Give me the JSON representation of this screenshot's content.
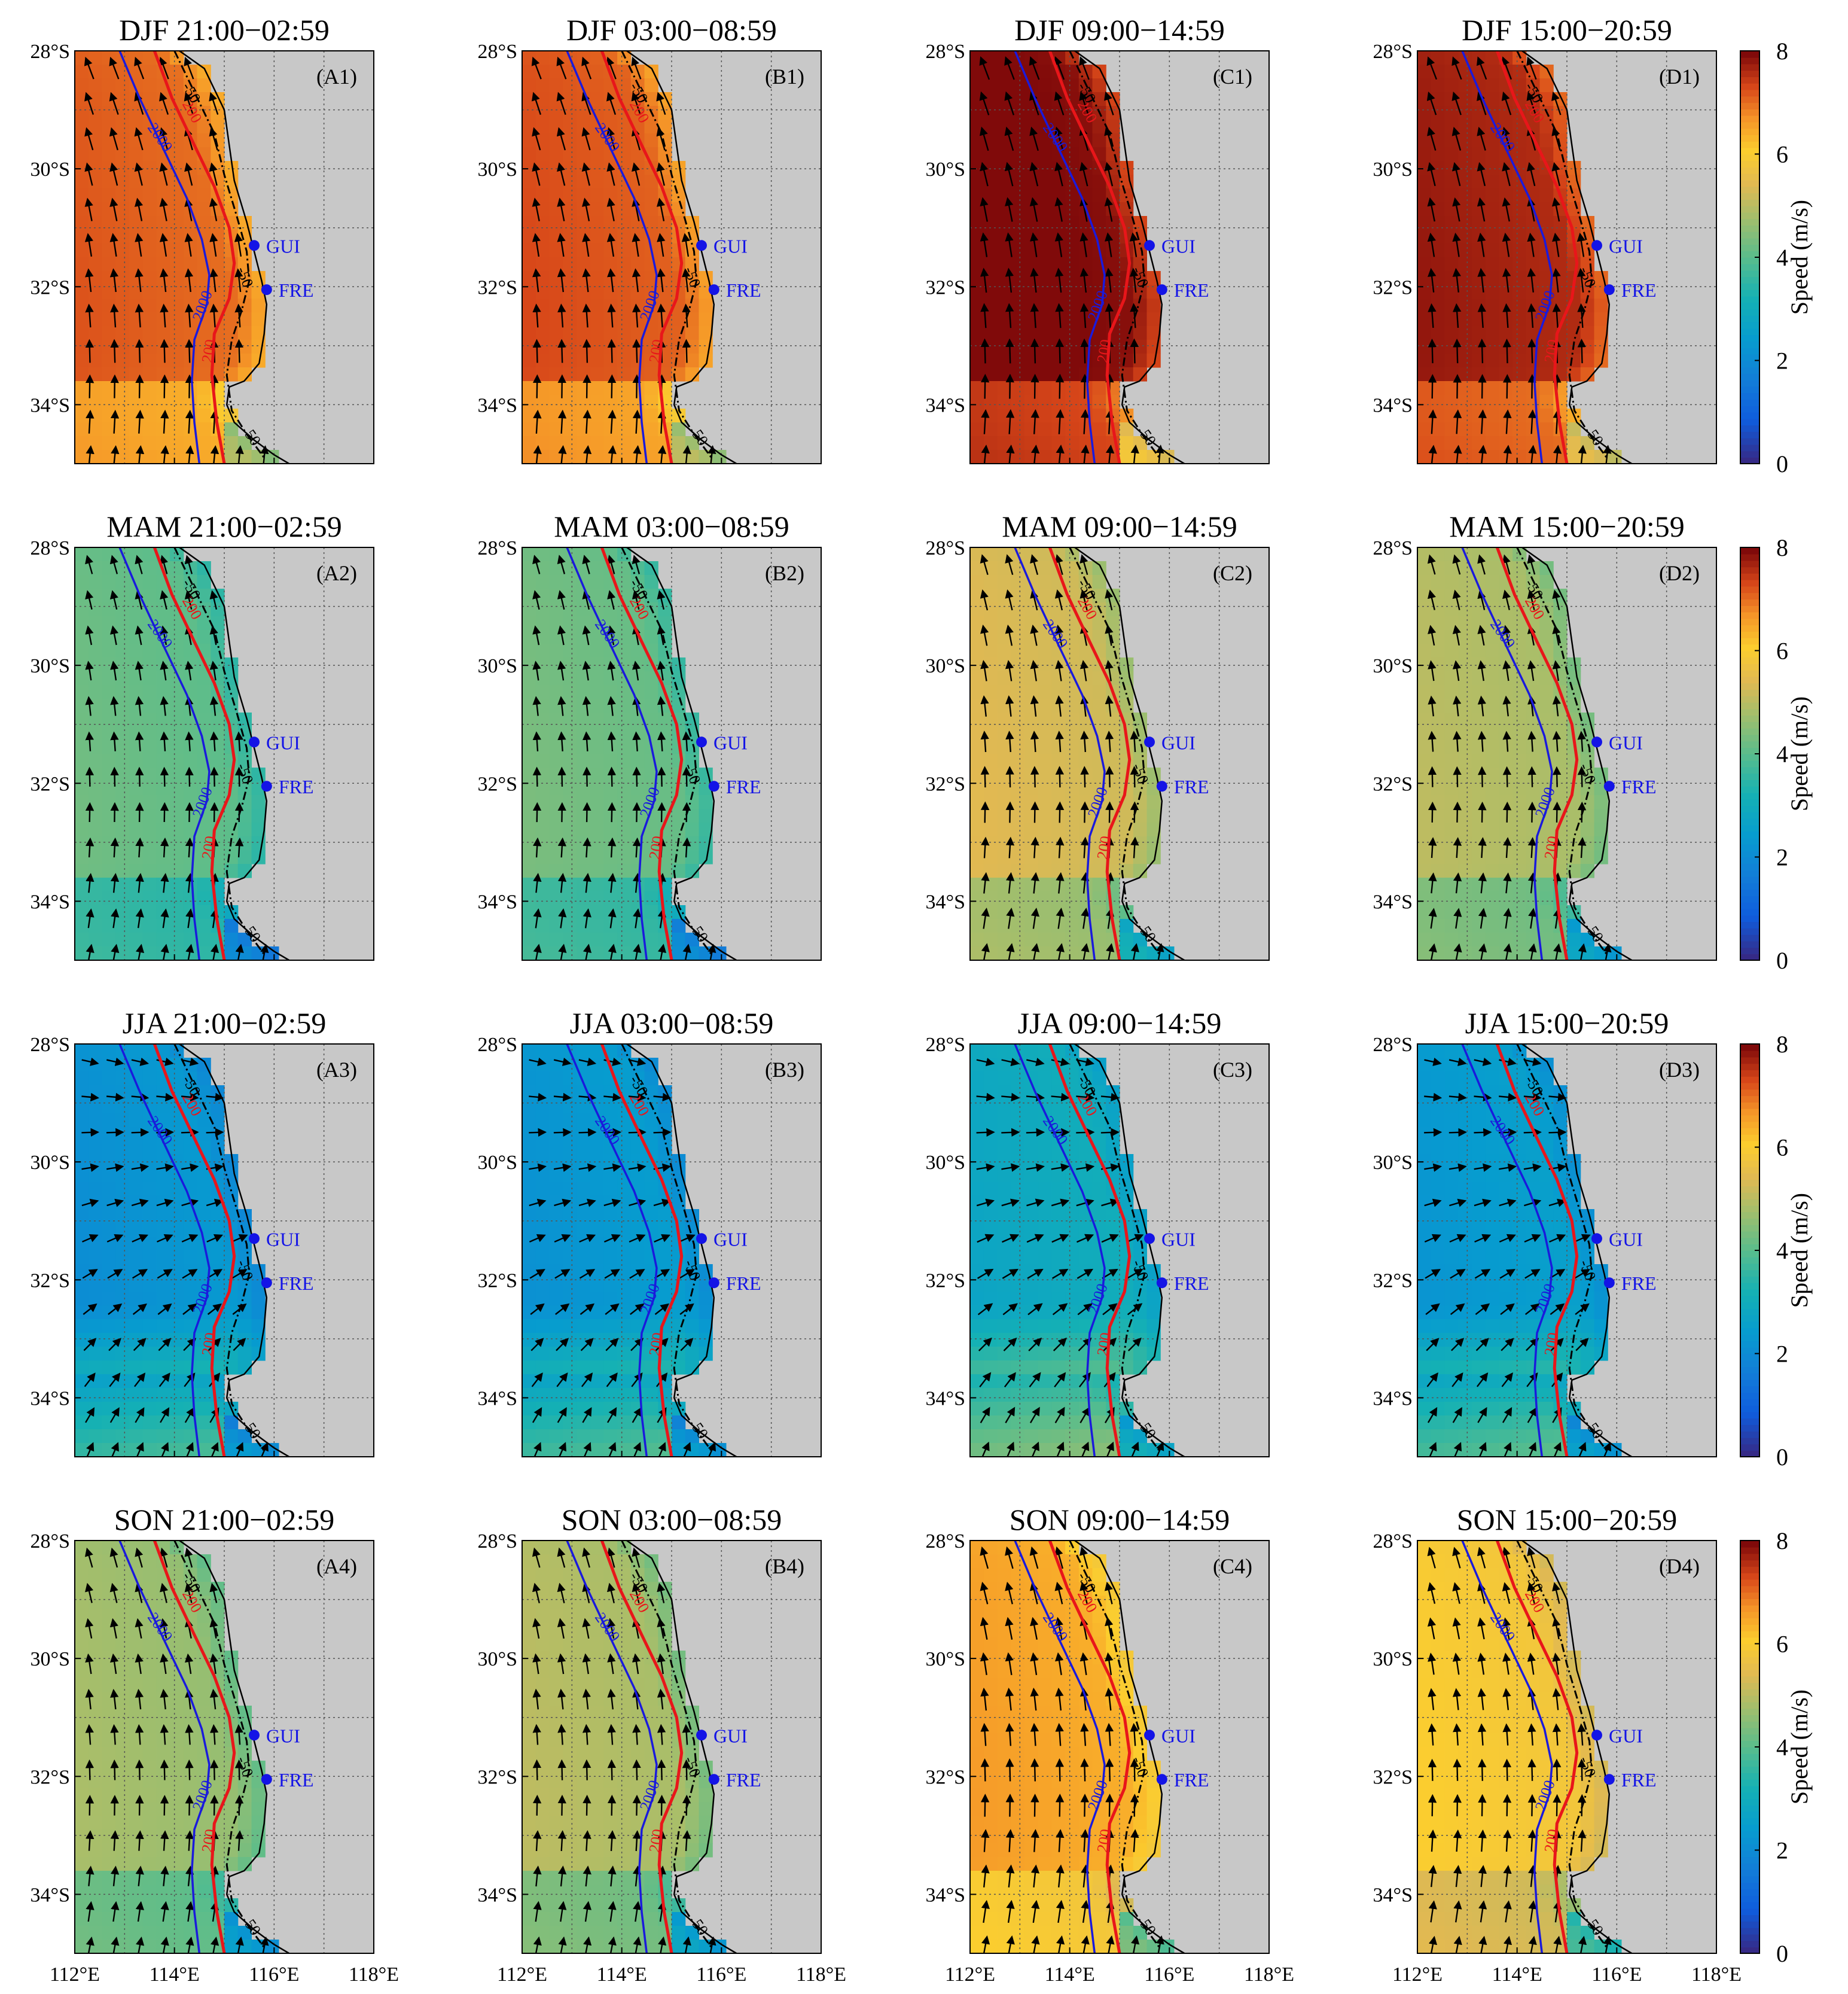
{
  "figure": {
    "rows": [
      {
        "season": "DJF",
        "panels": [
          {
            "period": "21:00−02:59",
            "label": "(A1)",
            "mean_speed": 7.0
          },
          {
            "period": "03:00−08:59",
            "label": "(B1)",
            "mean_speed": 7.1
          },
          {
            "period": "09:00−14:59",
            "label": "(C1)",
            "mean_speed": 7.9
          },
          {
            "period": "15:00−20:59",
            "label": "(D1)",
            "mean_speed": 7.6
          }
        ]
      },
      {
        "season": "MAM",
        "panels": [
          {
            "period": "21:00−02:59",
            "label": "(A2)",
            "mean_speed": 4.0
          },
          {
            "period": "03:00−08:59",
            "label": "(B2)",
            "mean_speed": 4.1
          },
          {
            "period": "09:00−14:59",
            "label": "(C2)",
            "mean_speed": 5.2
          },
          {
            "period": "15:00−20:59",
            "label": "(D2)",
            "mean_speed": 4.8
          }
        ]
      },
      {
        "season": "JJA",
        "panels": [
          {
            "period": "21:00−02:59",
            "label": "(A3)",
            "mean_speed": 2.4
          },
          {
            "period": "03:00−08:59",
            "label": "(B3)",
            "mean_speed": 2.5
          },
          {
            "period": "09:00−14:59",
            "label": "(C3)",
            "mean_speed": 3.1
          },
          {
            "period": "15:00−20:59",
            "label": "(D3)",
            "mean_speed": 2.6
          }
        ]
      },
      {
        "season": "SON",
        "panels": [
          {
            "period": "21:00−02:59",
            "label": "(A4)",
            "mean_speed": 4.6
          },
          {
            "period": "03:00−08:59",
            "label": "(B4)",
            "mean_speed": 4.8
          },
          {
            "period": "09:00−14:59",
            "label": "(C4)",
            "mean_speed": 6.4
          },
          {
            "period": "15:00−20:59",
            "label": "(D4)",
            "mean_speed": 5.8
          }
        ]
      }
    ],
    "lat_ticks": [
      "28°S",
      "30°S",
      "32°S",
      "34°S"
    ],
    "lon_ticks": [
      "112°E",
      "114°E",
      "116°E",
      "118°E"
    ],
    "lat_range": [
      -35,
      -28
    ],
    "lon_range": [
      112,
      118
    ],
    "stations": [
      {
        "name": "GUI",
        "lon": 115.6,
        "lat": -31.3
      },
      {
        "name": "FRE",
        "lon": 115.85,
        "lat": -32.05
      }
    ],
    "contour_labels": {
      "isobath_50": "-50",
      "isobath_200": "200",
      "isobath_2000": "2000",
      "isobath_50_south": "50"
    },
    "colorbar": {
      "label": "Speed (m/s)",
      "ticks": [
        "0",
        "2",
        "4",
        "6",
        "8"
      ],
      "range": [
        0,
        8
      ]
    },
    "colors": {
      "land": "#c8c8c8",
      "contour_2000": "#1a1adc",
      "contour_200": "#e8161a",
      "contour_50": "#000000",
      "station": "#1414e6",
      "grid": "#555555"
    }
  }
}
